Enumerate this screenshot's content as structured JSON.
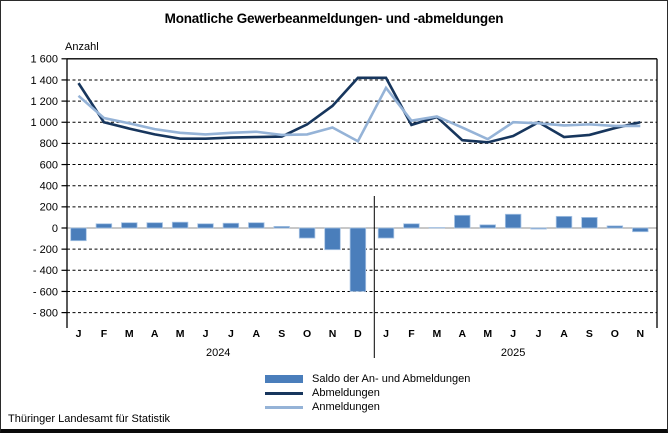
{
  "title": "Monatliche Gewerbeanmeldungen- und -abmeldungen",
  "footer": "Thüringer Landesamt für Statistik",
  "legend": [
    {
      "label": "Saldo der An- und Abmeldungen",
      "type": "bar",
      "color": "#4a7ebb"
    },
    {
      "label": "Abmeldungen",
      "type": "line",
      "color": "#17365d"
    },
    {
      "label": "Anmeldungen",
      "type": "line",
      "color": "#95b3d7"
    }
  ],
  "chart_data": {
    "type": "bar+line",
    "title": "Monatliche Gewerbeanmeldungen- und -abmeldungen",
    "ylabel": "Anzahl",
    "ylim": [
      -800,
      1600
    ],
    "ytick_step": 200,
    "ytick_labels": [
      "1 600",
      "1 400",
      "1 200",
      "1 000",
      "800",
      "600",
      "400",
      "200",
      "0",
      "- 200",
      "- 400",
      "- 600",
      "- 800"
    ],
    "grid": "horizontal-dashed",
    "legend_position": "bottom-center",
    "categories": [
      "J",
      "F",
      "M",
      "A",
      "M",
      "J",
      "J",
      "A",
      "S",
      "O",
      "N",
      "D",
      "J",
      "F",
      "M",
      "A",
      "M",
      "J",
      "J",
      "A",
      "S",
      "O",
      "N"
    ],
    "year_groups": [
      {
        "label": "2024",
        "months": 12
      },
      {
        "label": "2025",
        "months": 11
      }
    ],
    "series": [
      {
        "name": "Saldo der An- und Abmeldungen",
        "type": "bar",
        "color": "#4a7ebb",
        "values": [
          -120,
          40,
          50,
          50,
          55,
          40,
          45,
          50,
          15,
          -95,
          -205,
          -600,
          -95,
          40,
          5,
          120,
          30,
          130,
          -10,
          110,
          100,
          20,
          -35
        ]
      },
      {
        "name": "Abmeldungen",
        "type": "line",
        "color": "#17365d",
        "values": [
          1370,
          1000,
          940,
          885,
          845,
          845,
          855,
          860,
          865,
          980,
          1155,
          1420,
          1420,
          975,
          1050,
          830,
          810,
          870,
          1000,
          860,
          880,
          945,
          1000
        ]
      },
      {
        "name": "Anmeldungen",
        "type": "line",
        "color": "#95b3d7",
        "values": [
          1250,
          1040,
          990,
          935,
          900,
          885,
          900,
          910,
          880,
          885,
          950,
          820,
          1325,
          1015,
          1055,
          950,
          840,
          1000,
          990,
          970,
          980,
          965,
          965
        ]
      }
    ]
  }
}
